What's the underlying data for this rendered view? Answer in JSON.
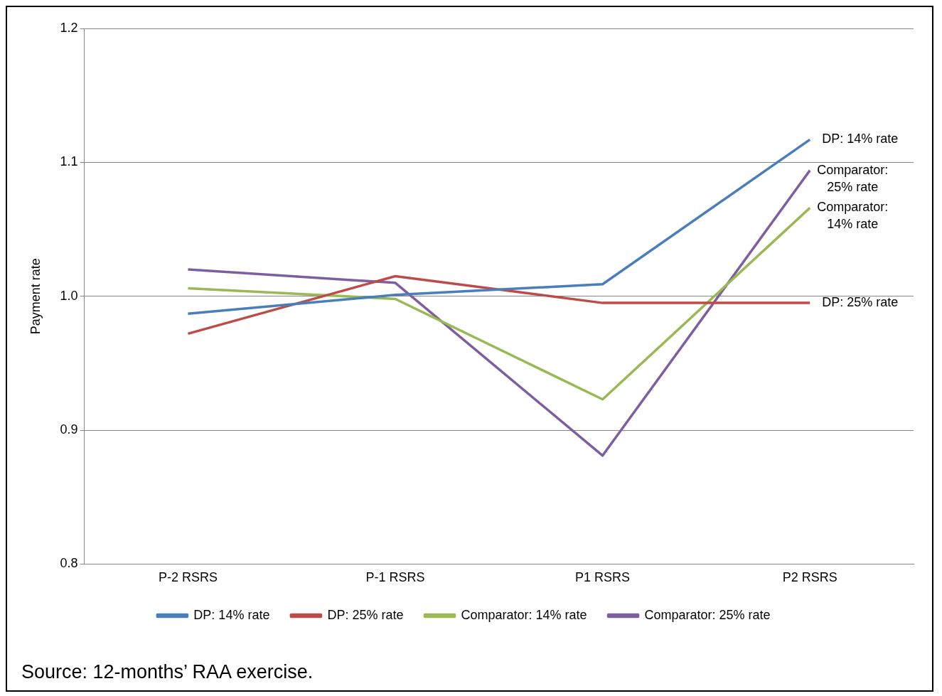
{
  "chart_data": {
    "type": "line",
    "ylabel": "Payment rate",
    "categories": [
      "P-2 RSRS",
      "P-1 RSRS",
      "P1 RSRS",
      "P2 RSRS"
    ],
    "series": [
      {
        "name": "DP: 14% rate",
        "color": "#4a7ebb",
        "values": [
          0.987,
          1.001,
          1.009,
          1.117
        ]
      },
      {
        "name": "DP: 25% rate",
        "color": "#be4b48",
        "values": [
          0.972,
          1.015,
          0.995,
          0.995
        ]
      },
      {
        "name": "Comparator: 14% rate",
        "color": "#98b954",
        "values": [
          1.006,
          0.998,
          0.923,
          1.066
        ]
      },
      {
        "name": "Comparator: 25% rate",
        "color": "#7d5fa0",
        "values": [
          1.02,
          1.01,
          0.881,
          1.094
        ]
      }
    ],
    "ylim": [
      0.8,
      1.2
    ],
    "yticks": [
      0.8,
      0.9,
      {
        "value": 1,
        "label": "1.0"
      },
      1.1,
      1.2
    ],
    "grid": "y",
    "legend": "bottom",
    "marker": "none",
    "line_style": "solid",
    "annotations": [
      {
        "text": "DP: 14% rate",
        "x": "P2 RSRS",
        "y": 1.117
      },
      {
        "text": "Comparator: 25% rate",
        "x": "P2 RSRS",
        "y": 1.094
      },
      {
        "text": "Comparator: 14% rate",
        "x": "P2 RSRS",
        "y": 1.066
      },
      {
        "text": "DP: 25% rate",
        "x": "P2 RSRS",
        "y": 0.995
      },
      "Source: 12-months’ RAA exercise."
    ]
  }
}
